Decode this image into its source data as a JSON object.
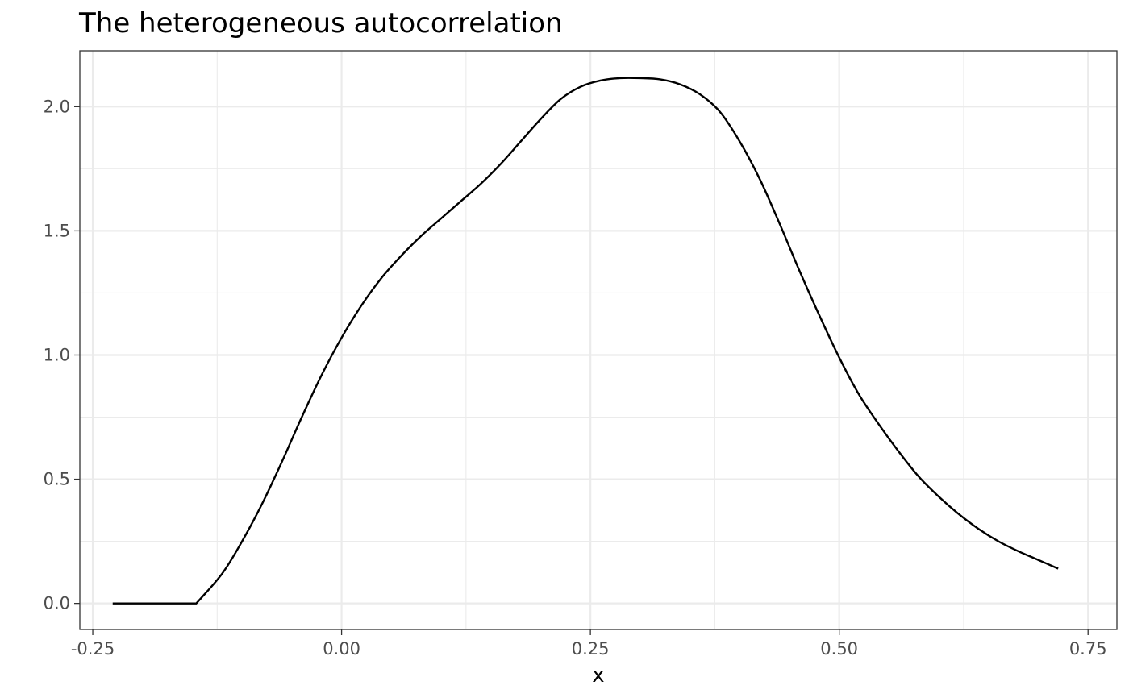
{
  "chart_data": {
    "type": "line",
    "title": "The heterogeneous autocorrelation",
    "xlabel": "x",
    "ylabel": "",
    "xlim": [
      -0.263,
      0.779
    ],
    "ylim": [
      -0.105,
      2.225
    ],
    "x_ticks": [
      -0.25,
      0.0,
      0.25,
      0.5,
      0.75
    ],
    "x_tick_labels": [
      "-0.25",
      "0.00",
      "0.25",
      "0.50",
      "0.75"
    ],
    "y_ticks": [
      0.0,
      0.5,
      1.0,
      1.5,
      2.0
    ],
    "y_tick_labels": [
      "0.0",
      "0.5",
      "1.0",
      "1.5",
      "2.0"
    ],
    "grid": true,
    "legend": "none",
    "series": [
      {
        "color": "#000000",
        "x": [
          -0.23,
          -0.2,
          -0.18,
          -0.146,
          -0.12,
          -0.1,
          -0.08,
          -0.06,
          -0.04,
          -0.02,
          0.0,
          0.02,
          0.04,
          0.06,
          0.08,
          0.1,
          0.12,
          0.14,
          0.16,
          0.18,
          0.2,
          0.22,
          0.24,
          0.26,
          0.28,
          0.3,
          0.32,
          0.34,
          0.36,
          0.38,
          0.4,
          0.42,
          0.44,
          0.46,
          0.48,
          0.5,
          0.52,
          0.54,
          0.56,
          0.58,
          0.6,
          0.62,
          0.64,
          0.66,
          0.68,
          0.7,
          0.72
        ],
        "y": [
          0.0,
          0.0,
          0.0,
          0.0,
          0.12,
          0.25,
          0.4,
          0.57,
          0.75,
          0.92,
          1.07,
          1.2,
          1.31,
          1.4,
          1.48,
          1.55,
          1.62,
          1.69,
          1.77,
          1.86,
          1.95,
          2.03,
          2.08,
          2.105,
          2.115,
          2.115,
          2.11,
          2.09,
          2.05,
          1.98,
          1.86,
          1.71,
          1.53,
          1.34,
          1.16,
          0.99,
          0.84,
          0.72,
          0.61,
          0.51,
          0.43,
          0.36,
          0.3,
          0.25,
          0.21,
          0.175,
          0.14
        ]
      }
    ]
  }
}
